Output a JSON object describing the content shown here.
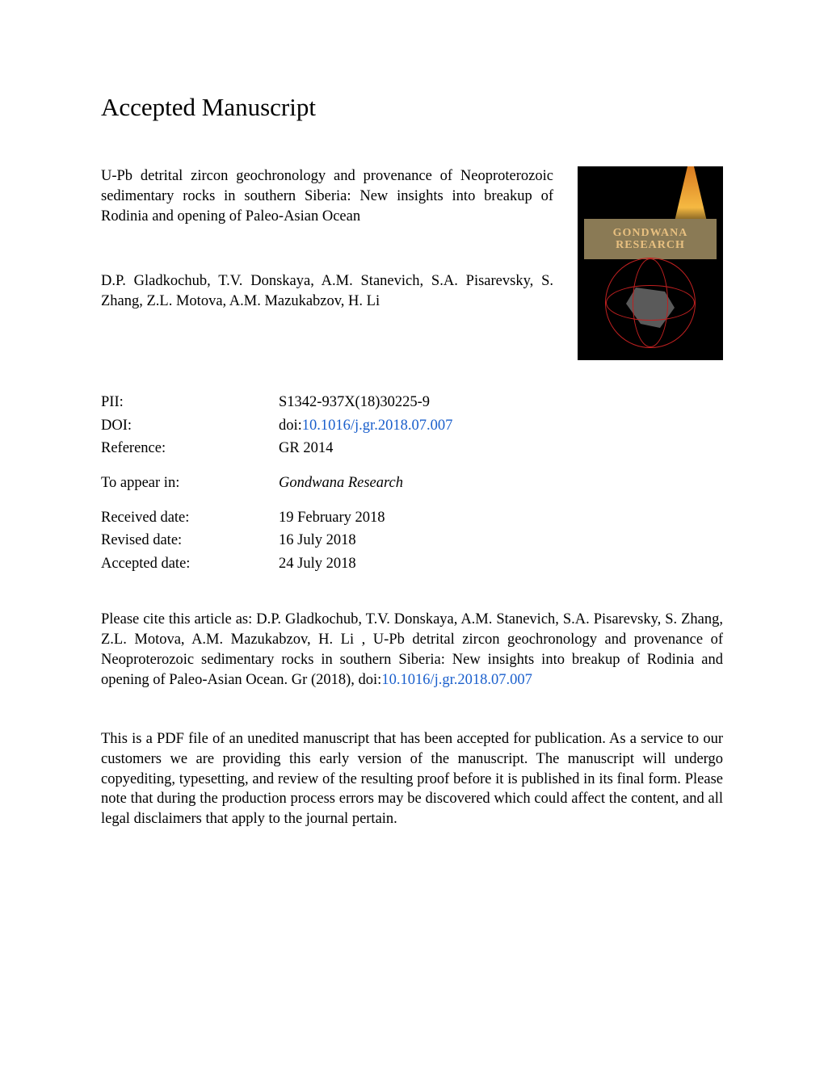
{
  "heading": "Accepted Manuscript",
  "article_title": "U-Pb detrital zircon geochronology and provenance of Neoproterozoic sedimentary rocks in southern Siberia: New insights into breakup of Rodinia and opening of Paleo-Asian Ocean",
  "authors": "D.P. Gladkochub, T.V. Donskaya, A.M. Stanevich, S.A. Pisarevsky, S. Zhang, Z.L. Motova, A.M. Mazukabzov, H. Li",
  "journal_cover": {
    "title_line1": "GONDWANA",
    "title_line2": "RESEARCH"
  },
  "meta": {
    "pii_label": "PII:",
    "pii_value": "S1342-937X(18)30225-9",
    "doi_label": "DOI:",
    "doi_prefix": "doi:",
    "doi_link_text": "10.1016/j.gr.2018.07.007",
    "reference_label": "Reference:",
    "reference_value": "GR 2014",
    "appear_label": "To appear in:",
    "appear_value": "Gondwana Research",
    "received_label": "Received date:",
    "received_value": "19 February 2018",
    "revised_label": "Revised date:",
    "revised_value": "16 July 2018",
    "accepted_label": "Accepted date:",
    "accepted_value": "24 July 2018"
  },
  "citation_prefix": "Please cite this article as: D.P. Gladkochub, T.V. Donskaya, A.M. Stanevich, S.A. Pisarevsky, S. Zhang, Z.L. Motova, A.M. Mazukabzov, H. Li , U-Pb detrital zircon geochronology and provenance of Neoproterozoic sedimentary rocks in southern Siberia: New insights into breakup of Rodinia and opening of Paleo-Asian Ocean. Gr (2018), doi:",
  "citation_link": "10.1016/j.gr.2018.07.007",
  "disclaimer": "This is a PDF file of an unedited manuscript that has been accepted for publication. As a service to our customers we are providing this early version of the manuscript. The manuscript will undergo copyediting, typesetting, and review of the resulting proof before it is published in its final form. Please note that during the production process errors may be discovered which could affect the content, and all legal disclaimers that apply to the journal pertain.",
  "colors": {
    "link": "#1a5fcc",
    "text": "#000000",
    "background": "#ffffff"
  }
}
